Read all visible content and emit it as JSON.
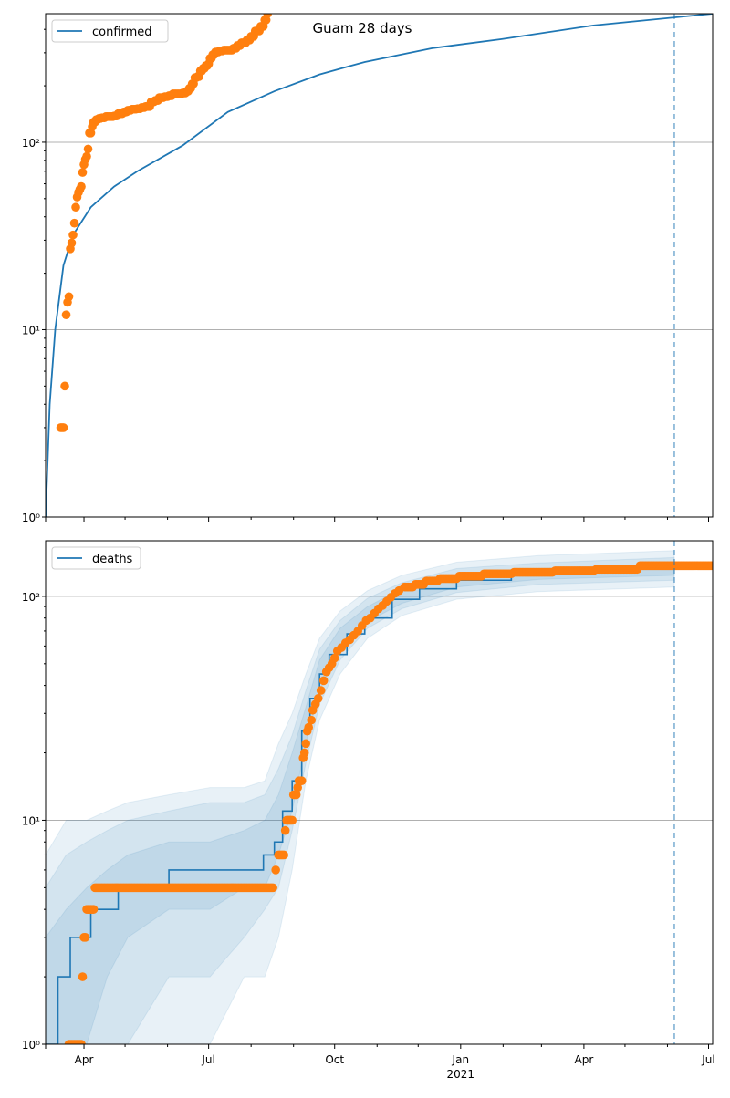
{
  "chart_data": [
    {
      "type": "scatter",
      "title": "Guam 28 days",
      "legend": {
        "label": "confirmed",
        "placement": "top-left"
      },
      "x_origin_date": "2020-03-04",
      "x_unit": "days since 2020-03-04",
      "xlim": [
        0,
        487
      ],
      "yscale": "log",
      "ylim": [
        1,
        485
      ],
      "yticks": [
        {
          "value": 1,
          "label": "10⁰"
        },
        {
          "value": 10,
          "label": "10¹"
        },
        {
          "value": 100,
          "label": "10²"
        }
      ],
      "grid": "y-major",
      "forecast_start_day": 459,
      "model_curve": [
        [
          0,
          1
        ],
        [
          3,
          4
        ],
        [
          7,
          10
        ],
        [
          13,
          22
        ],
        [
          20,
          32
        ],
        [
          33,
          45
        ],
        [
          50,
          58
        ],
        [
          67,
          70
        ],
        [
          100,
          96
        ],
        [
          133,
          145
        ],
        [
          167,
          187
        ],
        [
          200,
          230
        ],
        [
          233,
          268
        ],
        [
          283,
          318
        ],
        [
          333,
          355
        ],
        [
          400,
          420
        ],
        [
          487,
          485
        ]
      ],
      "observed": [
        [
          11,
          3
        ],
        [
          13,
          3
        ],
        [
          14,
          5
        ],
        [
          15,
          12
        ],
        [
          16,
          14
        ],
        [
          17,
          15
        ],
        [
          18,
          27
        ],
        [
          19,
          29
        ],
        [
          20,
          32
        ],
        [
          21,
          37
        ],
        [
          22,
          45
        ],
        [
          23,
          51
        ],
        [
          24,
          54
        ],
        [
          25,
          56
        ],
        [
          26,
          58
        ],
        [
          27,
          69
        ],
        [
          28,
          76
        ],
        [
          29,
          81
        ],
        [
          30,
          84
        ],
        [
          31,
          92
        ],
        [
          32,
          112
        ],
        [
          33,
          112
        ],
        [
          34,
          121
        ],
        [
          35,
          128
        ],
        [
          37,
          132
        ],
        [
          39,
          134
        ],
        [
          41,
          135
        ],
        [
          44,
          137
        ],
        [
          47,
          137
        ],
        [
          50,
          138
        ],
        [
          53,
          142
        ],
        [
          57,
          145
        ],
        [
          60,
          148
        ],
        [
          63,
          150
        ],
        [
          67,
          151
        ],
        [
          70,
          153
        ],
        [
          73,
          155
        ],
        [
          77,
          164
        ],
        [
          80,
          167
        ],
        [
          83,
          173
        ],
        [
          87,
          175
        ],
        [
          90,
          177
        ],
        [
          93,
          181
        ],
        [
          97,
          181
        ],
        [
          100,
          183
        ],
        [
          103,
          187
        ],
        [
          105,
          194
        ],
        [
          107,
          205
        ],
        [
          109,
          221
        ],
        [
          111,
          224
        ],
        [
          113,
          240
        ],
        [
          115,
          248
        ],
        [
          117,
          256
        ],
        [
          119,
          262
        ],
        [
          120,
          280
        ],
        [
          122,
          293
        ],
        [
          124,
          303
        ],
        [
          127,
          307
        ],
        [
          130,
          310
        ],
        [
          133,
          310
        ],
        [
          137,
          317
        ],
        [
          140,
          328
        ],
        [
          143,
          339
        ],
        [
          147,
          351
        ],
        [
          150,
          367
        ],
        [
          153,
          392
        ],
        [
          157,
          415
        ],
        [
          160,
          449
        ],
        [
          162,
          485
        ]
      ]
    },
    {
      "type": "scatter",
      "legend": {
        "label": "deaths",
        "placement": "top-left"
      },
      "x_origin_date": "2020-03-04",
      "x_unit": "days since 2020-03-04",
      "xlim": [
        0,
        487
      ],
      "yscale": "log",
      "ylim": [
        1,
        177
      ],
      "yticks": [
        {
          "value": 1,
          "label": "10⁰"
        },
        {
          "value": 10,
          "label": "10¹"
        },
        {
          "value": 100,
          "label": "10²"
        }
      ],
      "grid": "y-major",
      "forecast_start_day": 459,
      "xticks": [
        {
          "day": 28,
          "label": "Apr"
        },
        {
          "day": 119,
          "label": "Jul"
        },
        {
          "day": 211,
          "label": "Oct"
        },
        {
          "day": 303,
          "label": "Jan",
          "sublabel": "2021"
        },
        {
          "day": 393,
          "label": "Apr"
        },
        {
          "day": 484,
          "label": "Jul"
        }
      ],
      "minor_xticks": [
        58,
        89,
        150,
        181,
        242,
        272,
        334,
        362,
        423,
        454
      ],
      "model_median_steps": [
        [
          0,
          1
        ],
        [
          9,
          2
        ],
        [
          18,
          3
        ],
        [
          33,
          4
        ],
        [
          53,
          5
        ],
        [
          90,
          6
        ],
        [
          159,
          7
        ],
        [
          167,
          8
        ],
        [
          173,
          11
        ],
        [
          180,
          15
        ],
        [
          187,
          25
        ],
        [
          193,
          35
        ],
        [
          200,
          45
        ],
        [
          207,
          55
        ],
        [
          220,
          68
        ],
        [
          233,
          80
        ],
        [
          253,
          97
        ],
        [
          273,
          108
        ],
        [
          300,
          118
        ],
        [
          340,
          126
        ],
        [
          380,
          130
        ],
        [
          433,
          133
        ],
        [
          459,
          135
        ]
      ],
      "bands_columns": [
        "day",
        "lo95",
        "lo75",
        "lo50",
        "hi50",
        "hi75",
        "hi95"
      ],
      "bands": [
        [
          0,
          1,
          1,
          1,
          3,
          5,
          7
        ],
        [
          15,
          1,
          1,
          1,
          4,
          7,
          10
        ],
        [
          30,
          1,
          1,
          1,
          5,
          8,
          10
        ],
        [
          45,
          1,
          1,
          2,
          6,
          9,
          11
        ],
        [
          60,
          1,
          1,
          3,
          7,
          10,
          12
        ],
        [
          90,
          1,
          2,
          4,
          8,
          11,
          13
        ],
        [
          120,
          1,
          2,
          4,
          8,
          12,
          14
        ],
        [
          145,
          2,
          3,
          5,
          9,
          12,
          14
        ],
        [
          160,
          2,
          4,
          5,
          10,
          13,
          15
        ],
        [
          170,
          3,
          5,
          7,
          13,
          17,
          22
        ],
        [
          180,
          6,
          9,
          11,
          20,
          24,
          30
        ],
        [
          190,
          15,
          18,
          22,
          32,
          38,
          45
        ],
        [
          200,
          28,
          33,
          38,
          52,
          58,
          65
        ],
        [
          215,
          45,
          52,
          57,
          72,
          78,
          86
        ],
        [
          235,
          65,
          72,
          77,
          90,
          98,
          106
        ],
        [
          260,
          82,
          88,
          93,
          108,
          115,
          124
        ],
        [
          300,
          97,
          104,
          110,
          125,
          133,
          142
        ],
        [
          360,
          105,
          113,
          119,
          133,
          141,
          152
        ],
        [
          459,
          110,
          118,
          124,
          140,
          149,
          160
        ]
      ],
      "observed_runs_columns": [
        "start_day",
        "end_day",
        "value"
      ],
      "observed_runs": [
        [
          17,
          26,
          1
        ],
        [
          27,
          27,
          2
        ],
        [
          28,
          29,
          3
        ],
        [
          30,
          35,
          4
        ],
        [
          36,
          166,
          5
        ],
        [
          168,
          168,
          6
        ],
        [
          170,
          174,
          7
        ],
        [
          175,
          175,
          9
        ],
        [
          176,
          180,
          10
        ],
        [
          181,
          183,
          13
        ],
        [
          184,
          184,
          14
        ],
        [
          185,
          187,
          15
        ],
        [
          188,
          188,
          19
        ],
        [
          189,
          189,
          20
        ],
        [
          190,
          190,
          22
        ],
        [
          191,
          191,
          25
        ],
        [
          192,
          192,
          26
        ],
        [
          194,
          194,
          28
        ],
        [
          195,
          195,
          31
        ],
        [
          197,
          197,
          33
        ],
        [
          199,
          199,
          35
        ],
        [
          201,
          201,
          38
        ],
        [
          203,
          203,
          42
        ],
        [
          205,
          205,
          46
        ],
        [
          207,
          207,
          48
        ],
        [
          209,
          209,
          50
        ],
        [
          211,
          211,
          53
        ],
        [
          213,
          213,
          57
        ],
        [
          216,
          216,
          59
        ],
        [
          219,
          219,
          62
        ],
        [
          222,
          222,
          64
        ],
        [
          225,
          225,
          67
        ],
        [
          228,
          228,
          70
        ],
        [
          231,
          231,
          74
        ],
        [
          234,
          234,
          78
        ],
        [
          237,
          237,
          80
        ],
        [
          240,
          240,
          84
        ],
        [
          243,
          243,
          88
        ],
        [
          246,
          246,
          91
        ],
        [
          249,
          249,
          95
        ],
        [
          252,
          252,
          99
        ],
        [
          255,
          255,
          103
        ],
        [
          258,
          258,
          106
        ],
        [
          262,
          268,
          110
        ],
        [
          270,
          276,
          113
        ],
        [
          278,
          286,
          117
        ],
        [
          288,
          300,
          120
        ],
        [
          302,
          318,
          123
        ],
        [
          320,
          340,
          126
        ],
        [
          342,
          370,
          128
        ],
        [
          372,
          400,
          130
        ],
        [
          402,
          432,
          132
        ],
        [
          434,
          487,
          137
        ]
      ]
    }
  ],
  "colors": {
    "model": "#1f77b4",
    "observed": "#ff7f0e",
    "grid": "#b0b0b0"
  }
}
